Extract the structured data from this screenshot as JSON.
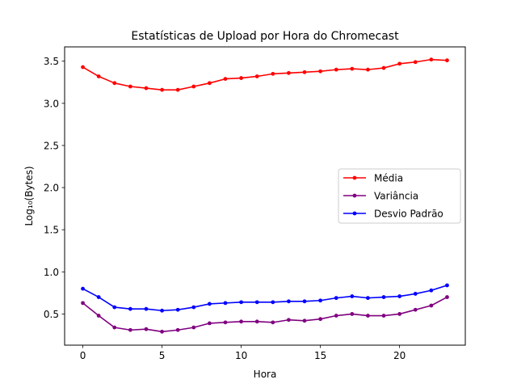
{
  "chart_data": {
    "type": "line",
    "title": "Estatísticas de Upload por Hora do Chromecast",
    "xlabel": "Hora",
    "ylabel": "Log₁₀(Bytes)",
    "xlim": [
      -1.15,
      24.15
    ],
    "ylim": [
      0.13,
      3.67
    ],
    "xticks": [
      0,
      5,
      10,
      15,
      20
    ],
    "yticks": [
      0.5,
      1.0,
      1.5,
      2.0,
      2.5,
      3.0,
      3.5
    ],
    "x": [
      0,
      1,
      2,
      3,
      4,
      5,
      6,
      7,
      8,
      9,
      10,
      11,
      12,
      13,
      14,
      15,
      16,
      17,
      18,
      19,
      20,
      21,
      22,
      23
    ],
    "legend_position": "center-right",
    "grid": false,
    "series": [
      {
        "name": "Média",
        "color": "#ff0000",
        "values": [
          3.43,
          3.32,
          3.24,
          3.2,
          3.18,
          3.16,
          3.16,
          3.2,
          3.24,
          3.29,
          3.3,
          3.32,
          3.35,
          3.36,
          3.37,
          3.38,
          3.4,
          3.41,
          3.4,
          3.42,
          3.47,
          3.49,
          3.52,
          3.51
        ]
      },
      {
        "name": "Variância",
        "color": "#800080",
        "values": [
          0.63,
          0.48,
          0.34,
          0.31,
          0.32,
          0.29,
          0.31,
          0.34,
          0.39,
          0.4,
          0.41,
          0.41,
          0.4,
          0.43,
          0.42,
          0.44,
          0.48,
          0.5,
          0.48,
          0.48,
          0.5,
          0.55,
          0.6,
          0.7
        ]
      },
      {
        "name": "Desvio Padrão",
        "color": "#0000ff",
        "values": [
          0.8,
          0.7,
          0.58,
          0.56,
          0.56,
          0.54,
          0.55,
          0.58,
          0.62,
          0.63,
          0.64,
          0.64,
          0.64,
          0.65,
          0.65,
          0.66,
          0.69,
          0.71,
          0.69,
          0.7,
          0.71,
          0.74,
          0.78,
          0.84
        ]
      }
    ]
  }
}
